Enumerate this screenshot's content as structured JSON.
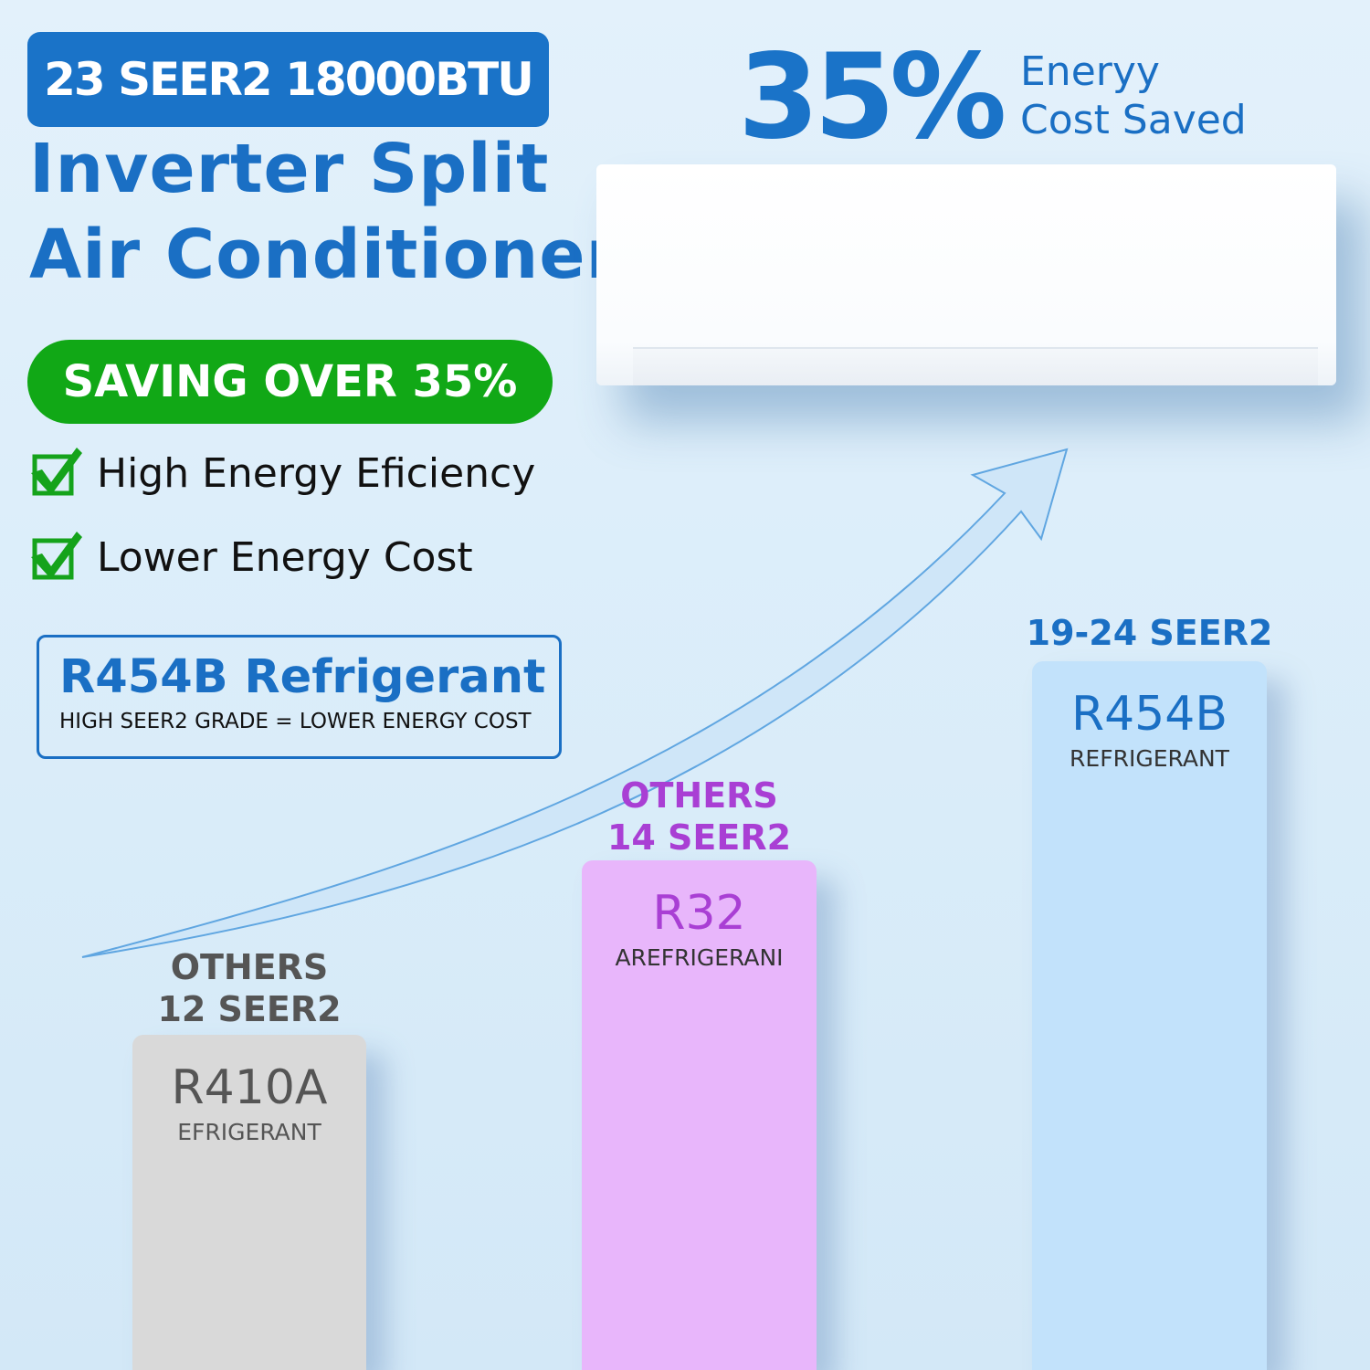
{
  "header": {
    "spec_badge": "23 SEER2 18000BTU",
    "title_line1": "Inverter Split",
    "title_line2": "Air Conditioner",
    "saving_badge": "SAVING OVER 35%"
  },
  "features": [
    {
      "icon": "green-checkbox-icon",
      "label": "High Energy Eficiency"
    },
    {
      "icon": "green-checkbox-icon",
      "label": "Lower Energy Cost"
    }
  ],
  "refrigerant_box": {
    "title": "R454B Refrigerant",
    "subtitle": "HIGH SEER2 GRADE = LOWER ENERGY COST"
  },
  "savings": {
    "percent": "35%",
    "line1": "Eneryy",
    "line2": "Cost Saved"
  },
  "comparison": [
    {
      "label1": "OTHERS",
      "label2": "12 SEER2",
      "name": "R410A",
      "sub": "EFRIGERANT",
      "color": "#d9d9d9",
      "label_color": "#555555",
      "text_color": "#555555"
    },
    {
      "label1": "OTHERS",
      "label2": "14 SEER2",
      "name": "R32",
      "sub": "AREFRIGERANI",
      "color": "#e8b6fb",
      "label_color": "#a93fd4",
      "text_color": "#a93fd4"
    },
    {
      "label1": "",
      "label2": "19-24 SEER2",
      "name": "R454B",
      "sub": "REFRIGERANT",
      "color": "#c2e2fb",
      "label_color": "#1a6fc4",
      "text_color": "#1a6fc4"
    }
  ],
  "colors": {
    "brand_blue": "#1a73c8",
    "green": "#11a816"
  }
}
